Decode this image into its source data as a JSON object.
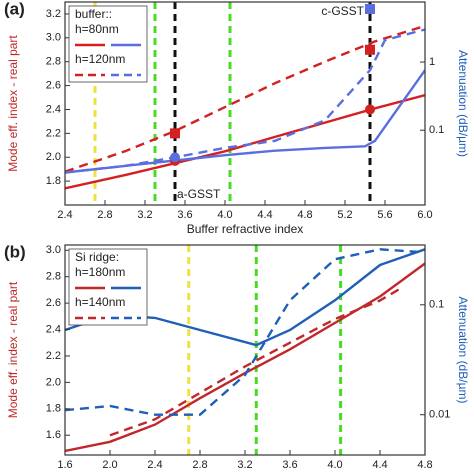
{
  "chart_data": [
    {
      "type": "line",
      "panel": "(a)",
      "xlabel": "Buffer refractive index",
      "ylabel": "Mode eff. index - real part",
      "y2label": "Attenuation (dB/µm)",
      "legend_title": "buffer::",
      "xlim": [
        2.4,
        6.0
      ],
      "xticks": [
        2.4,
        2.8,
        3.2,
        3.6,
        {
          "value": 4,
          "label": "4.0"
        },
        4.4,
        4.8,
        5.2,
        5.6,
        {
          "value": 6,
          "label": "6.0"
        }
      ],
      "ylim": [
        1.6,
        3.3
      ],
      "yticks": [
        1.8,
        {
          "value": 2,
          "label": "2.0"
        },
        2.2,
        2.4,
        2.6,
        2.8,
        {
          "value": 3,
          "label": "3.0"
        },
        3.2
      ],
      "y2lim": [
        0.008,
        7.6
      ],
      "y2ticks": [
        0.1,
        1
      ],
      "y2log": true,
      "series": [
        {
          "name": "h=80nm",
          "color": "#d42020",
          "dash": false,
          "x": [
            2.4,
            3.0,
            3.5,
            4.0,
            4.5,
            5.0,
            5.5,
            6.0
          ],
          "values": [
            1.74,
            1.85,
            1.95,
            2.05,
            2.17,
            2.29,
            2.41,
            2.52
          ]
        },
        {
          "name": "h=80nm",
          "color": "#5a6ee0",
          "dash": false,
          "axis": "y2",
          "x": [
            2.4,
            3.0,
            3.5,
            4.0,
            4.5,
            5.0,
            5.4,
            5.5,
            6.0
          ],
          "values": [
            0.024,
            0.03,
            0.036,
            0.043,
            0.05,
            0.055,
            0.058,
            0.07,
            0.76
          ]
        },
        {
          "name": "h=120nm",
          "color": "#d42020",
          "dash": true,
          "x": [
            2.4,
            3.0,
            3.5,
            4.0,
            4.5,
            5.0,
            5.5,
            6.0
          ],
          "values": [
            1.88,
            2.05,
            2.22,
            2.42,
            2.62,
            2.8,
            2.97,
            3.1
          ]
        },
        {
          "name": "h=120nm",
          "color": "#5a6ee0",
          "dash": true,
          "axis": "y2",
          "x": [
            2.4,
            3.0,
            3.5,
            4.0,
            4.5,
            5.0,
            5.45,
            5.6,
            6.0
          ],
          "values": [
            0.024,
            0.03,
            0.04,
            0.055,
            0.07,
            0.14,
            0.76,
            2.1,
            3.0
          ]
        }
      ],
      "markers": [
        {
          "shape": "square",
          "color": "#d42020",
          "x": 3.5,
          "y": 2.2
        },
        {
          "shape": "square",
          "color": "#d42020",
          "x": 5.45,
          "y": 2.9
        },
        {
          "shape": "circle",
          "color": "#d42020",
          "x": 3.5,
          "y": 1.97
        },
        {
          "shape": "circle",
          "color": "#d42020",
          "x": 5.45,
          "y": 2.4
        },
        {
          "shape": "circle",
          "color": "#5a6ee0",
          "axis": "y2",
          "x": 3.5,
          "y": 0.04
        },
        {
          "shape": "square",
          "color": "#5a6ee0",
          "axis": "y2",
          "x": 5.45,
          "y": 6
        }
      ],
      "vlines": [
        {
          "x": 2.7,
          "color": "#f0e040"
        },
        {
          "x": 3.3,
          "color": "#44dd22"
        },
        {
          "x": 4.05,
          "color": "#44dd22"
        },
        {
          "x": 3.5,
          "color": "#111111"
        },
        {
          "x": 5.45,
          "color": "#111111"
        }
      ],
      "annotations": [
        "a-GSST",
        "c-GSST"
      ]
    },
    {
      "type": "line",
      "panel": "(b)",
      "xlabel": "Buffer refractive index",
      "ylabel": "Mode eff. index - real part",
      "y2label": "Attenuation (dB/µm)",
      "legend_title": "Si ridge:",
      "xlim": [
        1.6,
        4.8
      ],
      "xticks": [
        1.6,
        {
          "value": 2,
          "label": "2.0"
        },
        2.4,
        2.8,
        3.2,
        3.6,
        {
          "value": 4,
          "label": "4.0"
        },
        4.4,
        4.8
      ],
      "ylim": [
        1.45,
        3.04
      ],
      "yticks": [
        1.6,
        1.8,
        {
          "value": 2,
          "label": "2.0"
        },
        2.2,
        2.4,
        2.6,
        2.8,
        {
          "value": 3,
          "label": "3.0"
        }
      ],
      "y2lim": [
        0.0043,
        0.35
      ],
      "y2ticks": [
        0.01,
        0.1
      ],
      "y2log": true,
      "series": [
        {
          "name": "h=180nm",
          "color": "#c0282a",
          "dash": false,
          "x": [
            1.6,
            2.0,
            2.4,
            2.8,
            3.2,
            3.6,
            4.0,
            4.4,
            4.8
          ],
          "values": [
            1.48,
            1.55,
            1.68,
            1.88,
            2.07,
            2.25,
            2.45,
            2.65,
            2.9
          ]
        },
        {
          "name": "h=180nm",
          "color": "#1f5fb8",
          "dash": false,
          "axis": "y2",
          "x": [
            1.6,
            2.0,
            2.4,
            2.8,
            3.3,
            3.6,
            4.0,
            4.4,
            4.8
          ],
          "values": [
            0.059,
            0.081,
            0.076,
            0.059,
            0.043,
            0.059,
            0.11,
            0.23,
            0.32
          ]
        },
        {
          "name": "h=140nm",
          "color": "#c0282a",
          "dash": true,
          "x": [
            2.0,
            2.4,
            2.8,
            3.2,
            3.6,
            4.0,
            4.4,
            4.6
          ],
          "values": [
            1.6,
            1.72,
            1.92,
            2.12,
            2.3,
            2.48,
            2.62,
            2.72
          ]
        },
        {
          "name": "h=140nm",
          "color": "#1f5fb8",
          "dash": true,
          "axis": "y2",
          "x": [
            1.6,
            2.0,
            2.4,
            2.8,
            3.2,
            3.6,
            4.0,
            4.4,
            4.8
          ],
          "values": [
            0.011,
            0.012,
            0.01,
            0.01,
            0.023,
            0.11,
            0.26,
            0.32,
            0.3
          ]
        }
      ],
      "vlines": [
        {
          "x": 2.7,
          "color": "#f0e040"
        },
        {
          "x": 3.3,
          "color": "#44dd22"
        },
        {
          "x": 4.05,
          "color": "#44dd22"
        }
      ]
    }
  ]
}
